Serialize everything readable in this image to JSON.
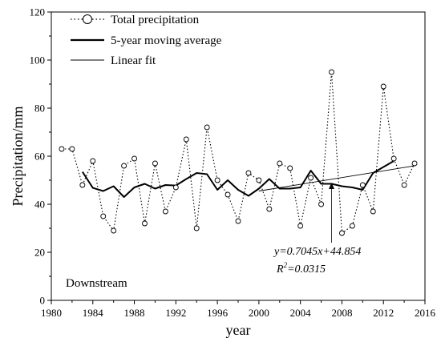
{
  "chart_data": {
    "type": "line",
    "title": "",
    "xlabel": "year",
    "ylabel": "Precipitation/mm",
    "xlim": [
      1980,
      2016
    ],
    "ylim": [
      0,
      120
    ],
    "xticks": [
      1980,
      1984,
      1988,
      1992,
      1996,
      2000,
      2004,
      2008,
      2012,
      2016
    ],
    "yticks": [
      0,
      20,
      40,
      60,
      80,
      100,
      120
    ],
    "grid": false,
    "legend_position": "top-left",
    "series": [
      {
        "name": "Total precipitation",
        "style": "dotted-with-open-circles",
        "color": "#000000",
        "x": [
          1981,
          1982,
          1983,
          1984,
          1985,
          1986,
          1987,
          1988,
          1989,
          1990,
          1991,
          1992,
          1993,
          1994,
          1995,
          1996,
          1997,
          1998,
          1999,
          2000,
          2001,
          2002,
          2003,
          2004,
          2005,
          2006,
          2007,
          2008,
          2009,
          2010,
          2011,
          2012,
          2013,
          2014,
          2015
        ],
        "y": [
          63,
          63,
          48,
          58,
          35,
          29,
          56,
          59,
          32,
          57,
          37,
          47,
          67,
          30,
          72,
          50,
          44,
          33,
          53,
          50,
          38,
          57,
          55,
          31,
          51,
          40,
          95,
          28,
          31,
          48,
          37,
          89,
          59,
          48,
          57
        ]
      },
      {
        "name": "5-year moving average",
        "style": "thick-solid",
        "color": "#000000",
        "x": [
          1983,
          1984,
          1985,
          1986,
          1987,
          1988,
          1989,
          1990,
          1991,
          1992,
          1993,
          1994,
          1995,
          1996,
          1997,
          1998,
          1999,
          2000,
          2001,
          2002,
          2003,
          2004,
          2005,
          2006,
          2007,
          2008,
          2009,
          2010,
          2011,
          2012,
          2013
        ],
        "y": [
          53.5,
          46.8,
          45.5,
          47.5,
          43,
          47,
          48.5,
          46.5,
          48,
          47.8,
          50.5,
          53,
          52.5,
          46,
          50,
          46,
          43.5,
          46.5,
          50.5,
          46.5,
          46.5,
          47,
          54,
          48.5,
          48.5,
          47.5,
          47,
          46,
          53,
          55.5,
          58
        ]
      },
      {
        "name": "Linear fit",
        "style": "thin-solid",
        "color": "#000000",
        "x": [
          2000,
          2015
        ],
        "y": [
          45.5,
          56
        ]
      }
    ],
    "annotations": {
      "equation": "y=0.7045x+44.854",
      "r2_prefix": "R",
      "r2_sup": "2",
      "r2_value": "=0.0315",
      "arrow_target_x": 2007,
      "arrow_target_y": 49
    },
    "region_label": "Downstream"
  }
}
